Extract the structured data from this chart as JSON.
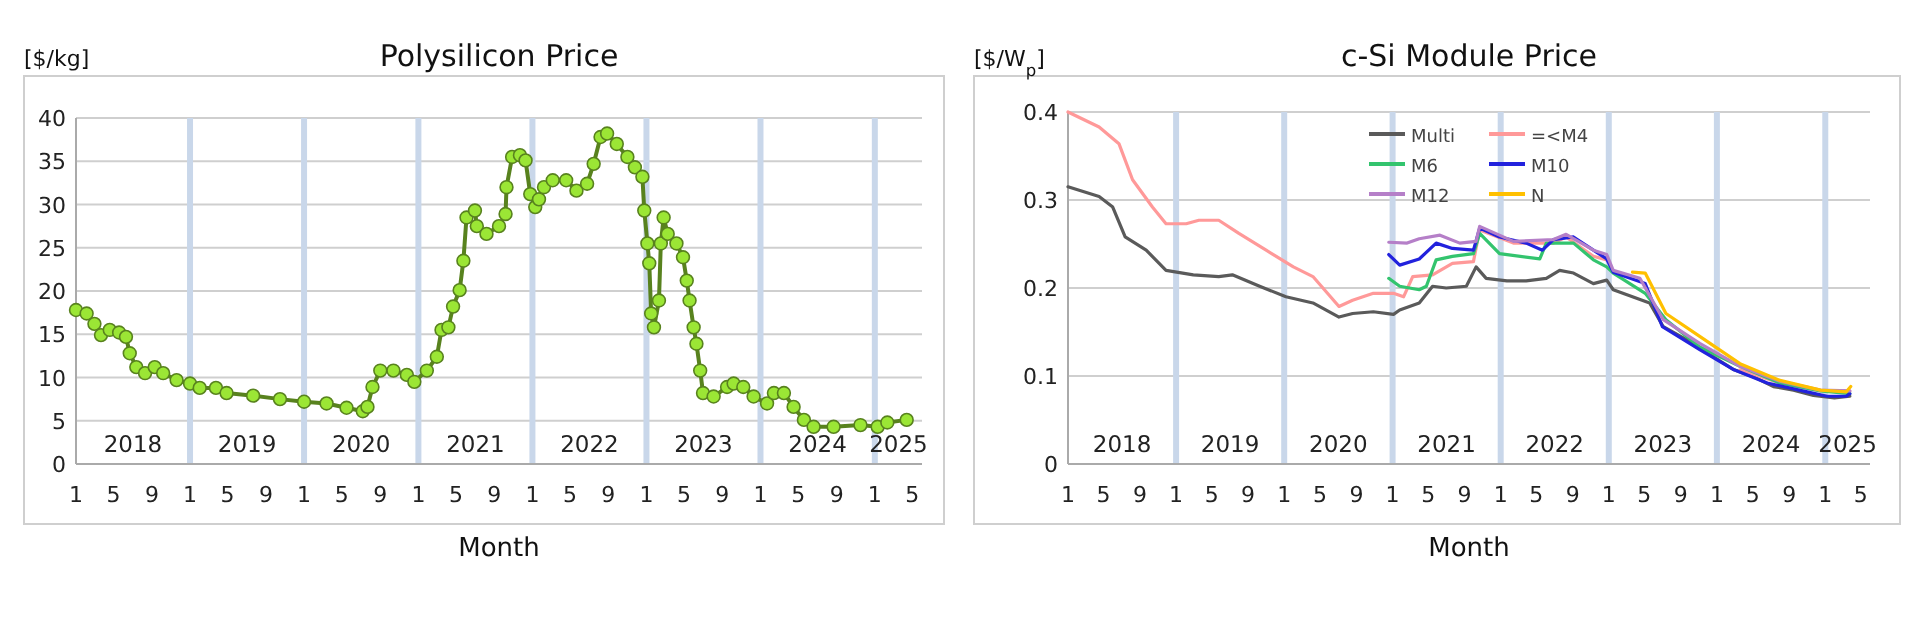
{
  "chart_data": [
    {
      "type": "line",
      "title": "Polysilicon Price",
      "xlabel": "Month",
      "ylabel": "[$/kg]",
      "marker": "circle",
      "grid": "y",
      "legend": false,
      "xlim": [
        "2018-01-01",
        "2025-06-01"
      ],
      "ylim": [
        0,
        40
      ],
      "yticks": [
        0,
        5,
        10,
        15,
        20,
        25,
        30,
        35,
        40
      ],
      "xticks": [
        {
          "value": "2018-01",
          "label": "1"
        },
        {
          "value": "2018-05",
          "label": "5"
        },
        {
          "value": "2018-09",
          "label": "9"
        },
        {
          "value": "2019-01",
          "label": "1"
        },
        {
          "value": "2019-05",
          "label": "5"
        },
        {
          "value": "2019-09",
          "label": "9"
        },
        {
          "value": "2020-01",
          "label": "1"
        },
        {
          "value": "2020-05",
          "label": "5"
        },
        {
          "value": "2020-09",
          "label": "9"
        },
        {
          "value": "2021-01",
          "label": "1"
        },
        {
          "value": "2021-05",
          "label": "5"
        },
        {
          "value": "2021-09",
          "label": "9"
        },
        {
          "value": "2022-01",
          "label": "1"
        },
        {
          "value": "2022-05",
          "label": "5"
        },
        {
          "value": "2022-09",
          "label": "9"
        },
        {
          "value": "2023-01",
          "label": "1"
        },
        {
          "value": "2023-05",
          "label": "5"
        },
        {
          "value": "2023-09",
          "label": "9"
        },
        {
          "value": "2024-01",
          "label": "1"
        },
        {
          "value": "2024-05",
          "label": "5"
        },
        {
          "value": "2024-09",
          "label": "9"
        },
        {
          "value": "2025-01",
          "label": "1"
        },
        {
          "value": "2025-05",
          "label": "5"
        }
      ],
      "ref_lines": [
        {
          "axis": "x",
          "value": "2019-01",
          "color": "#c9d7ea"
        },
        {
          "axis": "x",
          "value": "2020-01",
          "color": "#c9d7ea"
        },
        {
          "axis": "x",
          "value": "2021-01",
          "color": "#c9d7ea"
        },
        {
          "axis": "x",
          "value": "2022-01",
          "color": "#c9d7ea"
        },
        {
          "axis": "x",
          "value": "2023-01",
          "color": "#c9d7ea"
        },
        {
          "axis": "x",
          "value": "2024-01",
          "color": "#c9d7ea"
        },
        {
          "axis": "x",
          "value": "2025-01",
          "color": "#c9d7ea"
        }
      ],
      "annotations": [
        "2018",
        "2019",
        "2020",
        "2021",
        "2022",
        "2023",
        "2024",
        "2025"
      ],
      "series": [
        {
          "color": "#9be635",
          "x": [
            "2018-01-01",
            "2018-02-04",
            "2018-03-01",
            "2018-03-22",
            "2018-04-19",
            "2018-05-19",
            "2018-06-10",
            "2018-06-22",
            "2018-07-13",
            "2018-08-10",
            "2018-09-10",
            "2018-10-07",
            "2018-11-19",
            "2019-01-01",
            "2019-02-01",
            "2019-03-25",
            "2019-04-28",
            "2019-07-22",
            "2019-10-16",
            "2020-01-01",
            "2020-03-13",
            "2020-05-16",
            "2020-07-07",
            "2020-07-22",
            "2020-08-07",
            "2020-09-01",
            "2020-10-13",
            "2020-11-25",
            "2020-12-19",
            "2021-01-28",
            "2021-03-01",
            "2021-03-16",
            "2021-04-07",
            "2021-04-22",
            "2021-05-13",
            "2021-05-25",
            "2021-06-04",
            "2021-07-01",
            "2021-07-07",
            "2021-08-07",
            "2021-09-16",
            "2021-10-07",
            "2021-10-10",
            "2021-10-28",
            "2021-11-22",
            "2021-12-10",
            "2021-12-25",
            "2022-01-10",
            "2022-01-22",
            "2022-02-07",
            "2022-03-07",
            "2022-04-19",
            "2022-05-22",
            "2022-06-25",
            "2022-07-16",
            "2022-08-07",
            "2022-08-28",
            "2022-09-28",
            "2022-11-01",
            "2022-11-25",
            "2022-12-19",
            "2022-12-25",
            "2023-01-04",
            "2023-01-10",
            "2023-01-16",
            "2023-01-25",
            "2023-02-10",
            "2023-02-16",
            "2023-02-25",
            "2023-03-10",
            "2023-04-07",
            "2023-04-28",
            "2023-05-10",
            "2023-05-19",
            "2023-06-01",
            "2023-06-10",
            "2023-06-22",
            "2023-07-01",
            "2023-08-04",
            "2023-09-16",
            "2023-10-07",
            "2023-11-07",
            "2023-12-10",
            "2024-01-22",
            "2024-02-13",
            "2024-03-16",
            "2024-04-16",
            "2024-05-19",
            "2024-06-19",
            "2024-08-22",
            "2024-11-16",
            "2025-01-10",
            "2025-02-10",
            "2025-04-13"
          ],
          "values": [
            17.8,
            17.4,
            16.2,
            14.9,
            15.5,
            15.2,
            14.7,
            12.8,
            11.2,
            10.5,
            11.2,
            10.5,
            9.7,
            9.3,
            8.8,
            8.8,
            8.2,
            7.9,
            7.5,
            7.2,
            7.0,
            6.5,
            6.1,
            6.6,
            8.9,
            10.8,
            10.8,
            10.3,
            9.5,
            10.8,
            12.4,
            15.5,
            15.8,
            18.2,
            20.1,
            23.5,
            28.5,
            29.3,
            27.5,
            26.6,
            27.5,
            28.9,
            32,
            35.5,
            35.7,
            35.1,
            31.2,
            29.7,
            30.6,
            32,
            32.8,
            32.8,
            31.6,
            32.4,
            34.7,
            37.8,
            38.2,
            37,
            35.5,
            34.3,
            33.2,
            29.3,
            25.5,
            23.2,
            17.4,
            15.8,
            18.9,
            25.5,
            28.5,
            26.6,
            25.5,
            23.9,
            21.2,
            18.9,
            15.8,
            13.9,
            10.8,
            8.2,
            7.8,
            8.9,
            9.3,
            8.9,
            7.8,
            7.0,
            8.2,
            8.2,
            6.6,
            5.1,
            4.3,
            4.3,
            4.5,
            4.3,
            4.8,
            5.1
          ]
        }
      ]
    },
    {
      "type": "line",
      "title": "c-Si Module Price",
      "xlabel": "Month",
      "ylabel": "[$/W$_{p}$]",
      "marker": "none",
      "grid": "y",
      "legend": "top",
      "xlim": [
        "2018-01-01",
        "2025-06-01"
      ],
      "ylim": [
        0,
        0.4
      ],
      "yticks": [
        0,
        0.1,
        0.2,
        0.3,
        0.4
      ],
      "xticks": [
        {
          "value": "2018-01",
          "label": "1"
        },
        {
          "value": "2018-05",
          "label": "5"
        },
        {
          "value": "2018-09",
          "label": "9"
        },
        {
          "value": "2019-01",
          "label": "1"
        },
        {
          "value": "2019-05",
          "label": "5"
        },
        {
          "value": "2019-09",
          "label": "9"
        },
        {
          "value": "2020-01",
          "label": "1"
        },
        {
          "value": "2020-05",
          "label": "5"
        },
        {
          "value": "2020-09",
          "label": "9"
        },
        {
          "value": "2021-01",
          "label": "1"
        },
        {
          "value": "2021-05",
          "label": "5"
        },
        {
          "value": "2021-09",
          "label": "9"
        },
        {
          "value": "2022-01",
          "label": "1"
        },
        {
          "value": "2022-05",
          "label": "5"
        },
        {
          "value": "2022-09",
          "label": "9"
        },
        {
          "value": "2023-01",
          "label": "1"
        },
        {
          "value": "2023-05",
          "label": "5"
        },
        {
          "value": "2023-09",
          "label": "9"
        },
        {
          "value": "2024-01",
          "label": "1"
        },
        {
          "value": "2024-05",
          "label": "5"
        },
        {
          "value": "2024-09",
          "label": "9"
        },
        {
          "value": "2025-01",
          "label": "1"
        },
        {
          "value": "2025-05",
          "label": "5"
        }
      ],
      "ref_lines": [
        {
          "axis": "x",
          "value": "2019-01",
          "color": "#c9d7ea"
        },
        {
          "axis": "x",
          "value": "2020-01",
          "color": "#c9d7ea"
        },
        {
          "axis": "x",
          "value": "2021-01",
          "color": "#c9d7ea"
        },
        {
          "axis": "x",
          "value": "2022-01",
          "color": "#c9d7ea"
        },
        {
          "axis": "x",
          "value": "2023-01",
          "color": "#c9d7ea"
        },
        {
          "axis": "x",
          "value": "2024-01",
          "color": "#c9d7ea"
        },
        {
          "axis": "x",
          "value": "2025-01",
          "color": "#c9d7ea"
        }
      ],
      "annotations": [
        "2018",
        "2019",
        "2020",
        "2021",
        "2022",
        "2023",
        "2024",
        "2025"
      ],
      "series": [
        {
          "name": "Multi",
          "color": "#5a5a5a",
          "x": [
            "2018-01-01",
            "2018-04-16",
            "2018-06-01",
            "2018-07-13",
            "2018-09-22",
            "2018-11-28",
            "2019-02-28",
            "2019-05-25",
            "2019-07-10",
            "2019-10-10",
            "2020-01-07",
            "2020-04-07",
            "2020-07-04",
            "2020-08-19",
            "2020-10-28",
            "2021-01-04",
            "2021-01-25",
            "2021-04-01",
            "2021-05-16",
            "2021-07-01",
            "2021-09-07",
            "2021-10-10",
            "2021-11-13",
            "2022-01-22",
            "2022-03-28",
            "2022-06-04",
            "2022-07-19",
            "2022-09-04",
            "2022-11-10",
            "2022-12-25",
            "2023-01-16",
            "2023-03-22",
            "2023-05-19",
            "2023-07-04",
            "2023-09-22",
            "2023-12-19",
            "2024-02-28",
            "2024-05-04",
            "2024-07-10",
            "2024-09-16",
            "2024-11-22",
            "2025-02-01",
            "2025-03-25"
          ],
          "values": [
            0.315,
            0.304,
            0.292,
            0.258,
            0.243,
            0.22,
            0.215,
            0.213,
            0.215,
            0.202,
            0.19,
            0.183,
            0.167,
            0.171,
            0.173,
            0.17,
            0.175,
            0.183,
            0.202,
            0.2,
            0.202,
            0.224,
            0.211,
            0.208,
            0.208,
            0.211,
            0.22,
            0.217,
            0.205,
            0.209,
            0.198,
            0.19,
            0.183,
            0.156,
            0.141,
            0.122,
            0.107,
            0.099,
            0.088,
            0.084,
            0.078,
            0.075,
            0.077
          ]
        },
        {
          "name": "=<M4",
          "color": "#ff9999",
          "x": [
            "2018-01-01",
            "2018-04-16",
            "2018-06-22",
            "2018-08-07",
            "2018-10-13",
            "2018-11-28",
            "2019-02-04",
            "2019-03-19",
            "2019-05-25",
            "2019-08-01",
            "2019-11-01",
            "2020-02-01",
            "2020-04-07",
            "2020-07-04",
            "2020-08-19",
            "2020-10-28",
            "2021-01-04",
            "2021-02-07",
            "2021-03-10",
            "2021-05-16",
            "2021-07-22",
            "2021-10-01",
            "2021-10-22",
            "2022-02-13",
            "2022-06-28",
            "2022-08-10",
            "2022-11-10",
            "2022-12-25",
            "2023-01-16",
            "2023-04-16",
            "2023-06-01",
            "2023-07-04",
            "2023-11-04",
            "2024-03-19",
            "2024-08-01",
            "2024-12-16",
            "2025-03-25"
          ],
          "values": [
            0.4,
            0.383,
            0.364,
            0.323,
            0.292,
            0.273,
            0.273,
            0.277,
            0.277,
            0.262,
            0.243,
            0.224,
            0.213,
            0.179,
            0.186,
            0.194,
            0.194,
            0.19,
            0.213,
            0.215,
            0.228,
            0.23,
            0.266,
            0.251,
            0.251,
            0.258,
            0.236,
            0.232,
            null,
            null,
            null,
            null,
            null,
            0.107,
            0.092,
            0.083,
            0.083
          ]
        },
        {
          "name": "M6",
          "color": "#33c46e",
          "x": [
            "2020-12-19",
            "2021-01-25",
            "2021-04-01",
            "2021-04-25",
            "2021-05-28",
            "2021-07-22",
            "2021-10-01",
            "2021-10-22",
            "2021-12-28",
            "2022-05-13",
            "2022-06-04",
            "2022-09-04",
            "2022-11-10",
            "2022-12-25",
            "2023-01-16",
            "2023-05-04",
            "2023-07-13",
            "2023-11-04",
            "2024-03-19",
            "2024-08-01",
            "2024-12-16",
            "2025-03-25"
          ],
          "values": [
            0.211,
            0.202,
            0.198,
            0.202,
            0.232,
            0.236,
            0.239,
            0.262,
            0.239,
            0.233,
            0.251,
            0.251,
            0.232,
            0.224,
            0.217,
            0.194,
            0.164,
            0.133,
            0.111,
            0.092,
            0.083,
            0.08
          ]
        },
        {
          "name": "M10",
          "color": "#2222dd",
          "x": [
            "2020-12-19",
            "2021-01-25",
            "2021-04-01",
            "2021-05-28",
            "2021-07-22",
            "2021-10-01",
            "2021-10-22",
            "2021-12-28",
            "2022-03-28",
            "2022-05-22",
            "2022-06-28",
            "2022-09-04",
            "2022-11-10",
            "2022-12-25",
            "2023-01-16",
            "2023-05-04",
            "2023-07-01",
            "2023-11-04",
            "2024-02-28",
            "2024-06-19",
            "2024-11-01",
            "2025-01-07",
            "2025-03-13",
            "2025-03-25"
          ],
          "values": [
            0.238,
            0.226,
            0.233,
            0.251,
            0.245,
            0.243,
            0.268,
            0.258,
            0.251,
            0.243,
            0.255,
            0.258,
            0.243,
            0.233,
            0.218,
            0.205,
            0.156,
            0.13,
            0.107,
            0.092,
            0.082,
            0.077,
            0.077,
            0.08
          ]
        },
        {
          "name": "M12",
          "color": "#b57fc8",
          "x": [
            "2020-12-19",
            "2021-02-19",
            "2021-04-01",
            "2021-06-10",
            "2021-08-16",
            "2021-10-10",
            "2021-10-22",
            "2022-02-13",
            "2022-06-28",
            "2022-08-10",
            "2022-11-10",
            "2022-12-25",
            "2023-01-16",
            "2023-04-16",
            "2023-07-04",
            "2023-11-04",
            "2024-03-19",
            "2024-08-01",
            "2024-12-16",
            "2025-03-25"
          ],
          "values": [
            0.252,
            0.251,
            0.256,
            0.26,
            0.251,
            0.253,
            0.27,
            0.253,
            0.255,
            0.261,
            0.243,
            0.238,
            0.22,
            0.211,
            0.164,
            0.137,
            0.111,
            0.094,
            0.084,
            0.083
          ]
        },
        {
          "name": "N",
          "color": "#ffc000",
          "x": [
            "2023-03-22",
            "2023-05-04",
            "2023-07-13",
            "2023-11-04",
            "2024-03-19",
            "2024-08-01",
            "2024-12-16",
            "2025-03-13",
            "2025-03-28"
          ],
          "values": [
            0.218,
            0.217,
            0.171,
            0.145,
            0.114,
            0.095,
            0.084,
            0.082,
            0.088
          ]
        }
      ]
    }
  ]
}
